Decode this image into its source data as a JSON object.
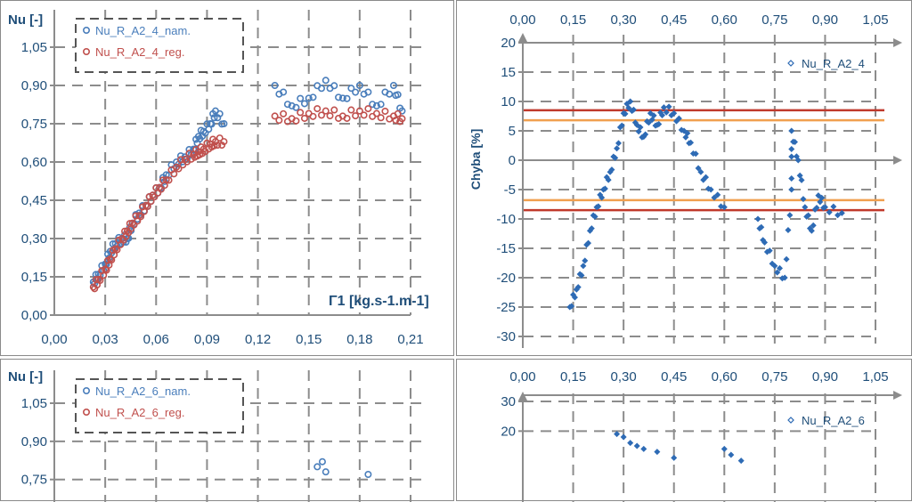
{
  "chart_data": [
    {
      "type": "scatter",
      "ylabel": "Nu [-]",
      "xlabel": "Γ1 [kg.s-1.m-1]",
      "xlim": [
        0,
        0.21
      ],
      "ylim": [
        0,
        1.05
      ],
      "x_ticks": [
        "0,00",
        "0,03",
        "0,06",
        "0,09",
        "0,12",
        "0,15",
        "0,18",
        "0,21"
      ],
      "y_ticks": [
        "0,00",
        "0,15",
        "0,30",
        "0,45",
        "0,60",
        "0,75",
        "0,90",
        "1,05"
      ],
      "grid": true,
      "legend": "top-left",
      "series": [
        {
          "name": "Nu_R_A2_4_nam.",
          "color": "#4a7ebb",
          "points": [
            [
              0.023,
              0.13
            ],
            [
              0.026,
              0.16
            ],
            [
              0.03,
              0.2
            ],
            [
              0.033,
              0.25
            ],
            [
              0.036,
              0.28
            ],
            [
              0.04,
              0.3
            ],
            [
              0.043,
              0.3
            ],
            [
              0.046,
              0.36
            ],
            [
              0.05,
              0.4
            ],
            [
              0.054,
              0.43
            ],
            [
              0.058,
              0.47
            ],
            [
              0.062,
              0.5
            ],
            [
              0.066,
              0.55
            ],
            [
              0.072,
              0.6
            ],
            [
              0.077,
              0.62
            ],
            [
              0.082,
              0.65
            ],
            [
              0.085,
              0.7
            ],
            [
              0.088,
              0.72
            ],
            [
              0.092,
              0.75
            ],
            [
              0.095,
              0.8
            ],
            [
              0.1,
              0.75
            ],
            [
              0.13,
              0.9
            ],
            [
              0.14,
              0.82
            ],
            [
              0.15,
              0.85
            ],
            [
              0.16,
              0.92
            ],
            [
              0.17,
              0.85
            ],
            [
              0.18,
              0.9
            ],
            [
              0.19,
              0.82
            ],
            [
              0.2,
              0.9
            ],
            [
              0.205,
              0.8
            ]
          ]
        },
        {
          "name": "Nu_R_A2_4_reg.",
          "color": "#c0504d",
          "points": [
            [
              0.023,
              0.11
            ],
            [
              0.026,
              0.14
            ],
            [
              0.03,
              0.18
            ],
            [
              0.033,
              0.22
            ],
            [
              0.036,
              0.26
            ],
            [
              0.04,
              0.3
            ],
            [
              0.043,
              0.33
            ],
            [
              0.046,
              0.36
            ],
            [
              0.05,
              0.39
            ],
            [
              0.054,
              0.43
            ],
            [
              0.058,
              0.47
            ],
            [
              0.062,
              0.5
            ],
            [
              0.066,
              0.53
            ],
            [
              0.072,
              0.58
            ],
            [
              0.077,
              0.61
            ],
            [
              0.082,
              0.63
            ],
            [
              0.085,
              0.64
            ],
            [
              0.088,
              0.65
            ],
            [
              0.092,
              0.67
            ],
            [
              0.095,
              0.68
            ],
            [
              0.1,
              0.68
            ],
            [
              0.13,
              0.78
            ],
            [
              0.14,
              0.77
            ],
            [
              0.15,
              0.79
            ],
            [
              0.16,
              0.8
            ],
            [
              0.17,
              0.78
            ],
            [
              0.18,
              0.8
            ],
            [
              0.19,
              0.79
            ],
            [
              0.2,
              0.78
            ],
            [
              0.205,
              0.77
            ]
          ]
        }
      ]
    },
    {
      "type": "scatter",
      "ylabel": "Chyba [%]",
      "xlim": [
        0,
        1.05
      ],
      "ylim": [
        -30,
        20
      ],
      "x_ticks": [
        "0,00",
        "0,15",
        "0,30",
        "0,45",
        "0,60",
        "0,75",
        "0,90",
        "1,05"
      ],
      "y_ticks": [
        "20",
        "15",
        "10",
        "5",
        "0",
        "-5",
        "-10",
        "-15",
        "-20",
        "-25",
        "-30"
      ],
      "grid": true,
      "legend": "top-right",
      "reference_lines": [
        {
          "y": 8.5,
          "color": "#c0392b"
        },
        {
          "y": 6.8,
          "color": "#f0a050"
        },
        {
          "y": -6.8,
          "color": "#f0a050"
        },
        {
          "y": -8.5,
          "color": "#c0392b"
        }
      ],
      "series": [
        {
          "name": "Nu_R_A2_4",
          "color": "#2e6bb5",
          "points": [
            [
              0.14,
              -25
            ],
            [
              0.16,
              -22
            ],
            [
              0.18,
              -18
            ],
            [
              0.2,
              -12
            ],
            [
              0.22,
              -8
            ],
            [
              0.24,
              -5
            ],
            [
              0.26,
              -2
            ],
            [
              0.28,
              2
            ],
            [
              0.3,
              8
            ],
            [
              0.32,
              10
            ],
            [
              0.34,
              6
            ],
            [
              0.36,
              4
            ],
            [
              0.38,
              8
            ],
            [
              0.4,
              6
            ],
            [
              0.42,
              9
            ],
            [
              0.45,
              8
            ],
            [
              0.48,
              5
            ],
            [
              0.5,
              3
            ],
            [
              0.53,
              -2
            ],
            [
              0.56,
              -5
            ],
            [
              0.6,
              -8
            ],
            [
              0.7,
              -10
            ],
            [
              0.72,
              -14
            ],
            [
              0.75,
              -18
            ],
            [
              0.78,
              -20
            ],
            [
              0.8,
              -5
            ],
            [
              0.8,
              5
            ],
            [
              0.82,
              0
            ],
            [
              0.84,
              -8
            ],
            [
              0.86,
              -12
            ],
            [
              0.88,
              -6
            ],
            [
              0.9,
              -8
            ],
            [
              0.95,
              -9
            ]
          ]
        }
      ]
    },
    {
      "type": "scatter",
      "ylabel": "Nu [-]",
      "xlim": [
        0,
        0.21
      ],
      "ylim": [
        0,
        1.05
      ],
      "y_ticks": [
        "1,05",
        "0,90",
        "0,75"
      ],
      "grid": true,
      "legend": "top-left",
      "series": [
        {
          "name": "Nu_R_A2_6_nam.",
          "color": "#4a7ebb",
          "points": [
            [
              0.155,
              0.8
            ],
            [
              0.158,
              0.82
            ],
            [
              0.16,
              0.78
            ],
            [
              0.185,
              0.77
            ]
          ]
        },
        {
          "name": "Nu_R_A2_6_reg.",
          "color": "#c0504d",
          "points": []
        }
      ]
    },
    {
      "type": "scatter",
      "xlim": [
        0,
        1.05
      ],
      "ylim": [
        0,
        30
      ],
      "x_ticks": [
        "0,00",
        "0,15",
        "0,30",
        "0,45",
        "0,60",
        "0,75",
        "0,90",
        "1,05"
      ],
      "y_ticks": [
        "30",
        "20"
      ],
      "grid": true,
      "legend": "top-right",
      "series": [
        {
          "name": "Nu_R_A2_6",
          "color": "#2e6bb5",
          "points": [
            [
              0.28,
              19
            ],
            [
              0.3,
              18
            ],
            [
              0.32,
              16
            ],
            [
              0.34,
              15
            ],
            [
              0.36,
              14
            ],
            [
              0.4,
              13
            ],
            [
              0.45,
              11
            ],
            [
              0.6,
              14
            ],
            [
              0.62,
              12
            ],
            [
              0.65,
              10
            ]
          ]
        }
      ]
    }
  ]
}
